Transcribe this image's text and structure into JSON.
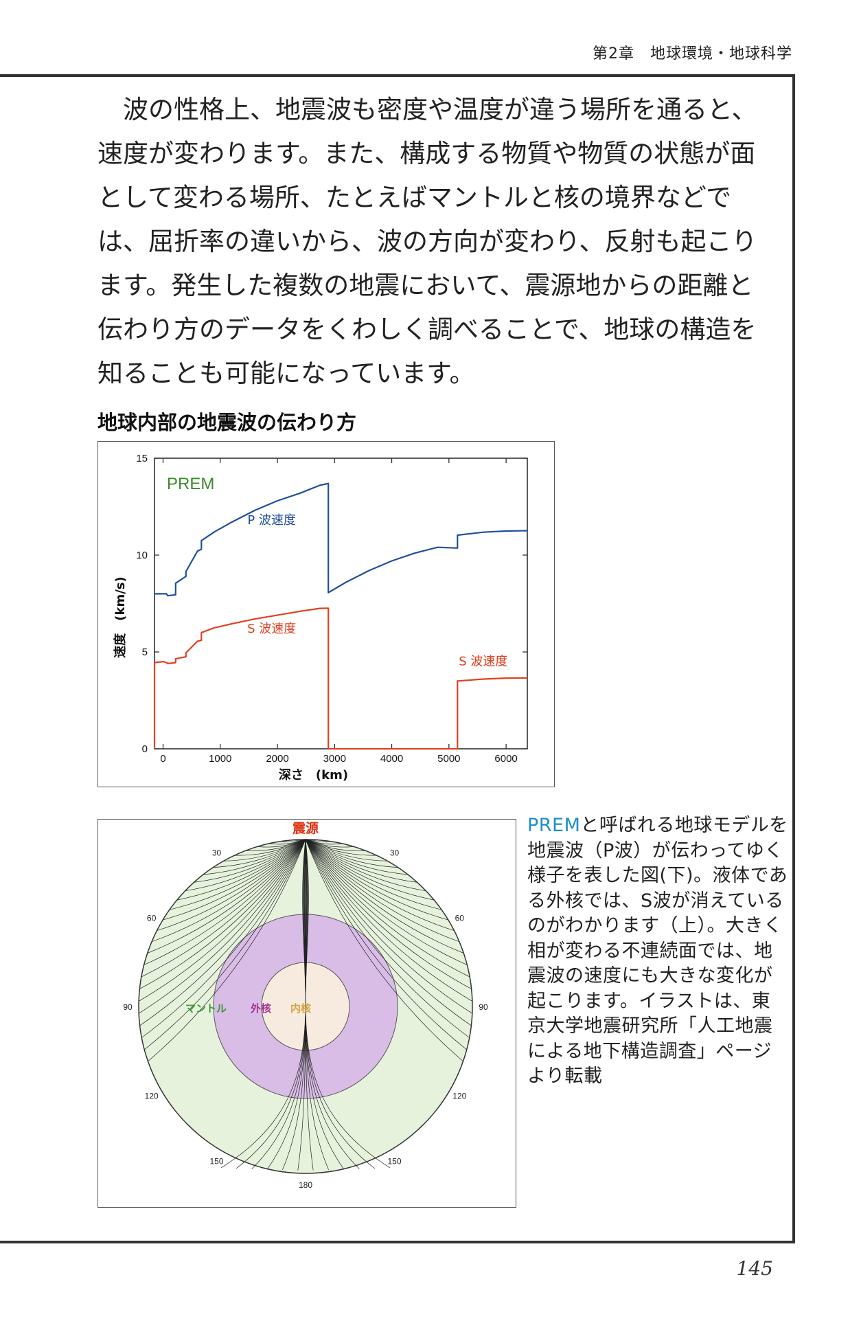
{
  "header": {
    "running_title": "第2章　地球環境・地球科学"
  },
  "body_text": "波の性格上、地震波も密度や温度が違う場所を通ると、速度が変わります。また、構成する物質や物質の状態が面として変わる場所、たとえばマントルと核の境界などでは、屈折率の違いから、波の方向が変わり、反射も起こります。発生した複数の地震において、震源地からの距離と伝わり方のデータをくわしく調べることで、地球の構造を知ることも可能になっています。",
  "section_title": "地球内部の地震波の伝わり方",
  "chart_data": {
    "type": "line",
    "title": "PREM",
    "xlabel": "深さ　(km)",
    "ylabel": "速度　(km/s)",
    "xlim": [
      -150,
      6371
    ],
    "ylim": [
      0,
      15
    ],
    "xticks": [
      0,
      1000,
      2000,
      3000,
      4000,
      5000,
      6000
    ],
    "yticks": [
      0,
      5,
      10,
      15
    ],
    "series": [
      {
        "name": "P 波速度",
        "color": "#1f4e9e",
        "points": [
          [
            -150,
            8.0
          ],
          [
            0,
            8.0
          ],
          [
            60,
            8.0
          ],
          [
            80,
            7.9
          ],
          [
            220,
            7.95
          ],
          [
            220,
            8.55
          ],
          [
            400,
            8.9
          ],
          [
            400,
            9.15
          ],
          [
            600,
            10.2
          ],
          [
            670,
            10.3
          ],
          [
            670,
            10.75
          ],
          [
            900,
            11.2
          ],
          [
            1200,
            11.7
          ],
          [
            1600,
            12.3
          ],
          [
            2000,
            12.8
          ],
          [
            2400,
            13.2
          ],
          [
            2740,
            13.6
          ],
          [
            2891,
            13.7
          ],
          [
            2891,
            8.06
          ],
          [
            3200,
            8.6
          ],
          [
            3600,
            9.2
          ],
          [
            4000,
            9.7
          ],
          [
            4400,
            10.1
          ],
          [
            4800,
            10.4
          ],
          [
            5150,
            10.36
          ],
          [
            5150,
            11.03
          ],
          [
            5600,
            11.18
          ],
          [
            6000,
            11.24
          ],
          [
            6371,
            11.26
          ]
        ]
      },
      {
        "name": "S 波速度",
        "color": "#e04020",
        "points": [
          [
            -150,
            0
          ],
          [
            -150,
            4.45
          ],
          [
            0,
            4.5
          ],
          [
            60,
            4.45
          ],
          [
            80,
            4.4
          ],
          [
            220,
            4.45
          ],
          [
            220,
            4.65
          ],
          [
            400,
            4.75
          ],
          [
            400,
            4.95
          ],
          [
            600,
            5.55
          ],
          [
            670,
            5.6
          ],
          [
            670,
            6.0
          ],
          [
            900,
            6.25
          ],
          [
            1200,
            6.45
          ],
          [
            1600,
            6.7
          ],
          [
            2000,
            6.9
          ],
          [
            2400,
            7.1
          ],
          [
            2740,
            7.25
          ],
          [
            2891,
            7.26
          ],
          [
            2891,
            0
          ],
          [
            5150,
            0
          ],
          [
            5150,
            3.5
          ],
          [
            5600,
            3.6
          ],
          [
            6000,
            3.65
          ],
          [
            6371,
            3.66
          ]
        ]
      }
    ],
    "annotations": [
      {
        "text": "P 波速度",
        "x": 1900,
        "y": 11.6,
        "color": "#1f4e9e"
      },
      {
        "text": "S 波速度",
        "x": 1900,
        "y": 6.0,
        "color": "#e04020"
      },
      {
        "text": "S 波速度",
        "x": 5600,
        "y": 4.3,
        "color": "#e04020"
      }
    ],
    "grid": false
  },
  "diagram": {
    "source_label": "震源",
    "angle_labels": [
      "30",
      "30",
      "60",
      "60",
      "90",
      "90",
      "120",
      "120",
      "150",
      "150",
      "180"
    ],
    "layers": [
      {
        "name": "マントル",
        "color": "#e6f2dc",
        "label_color": "#3a9a3a"
      },
      {
        "name": "外核",
        "color": "#d9bde6",
        "label_color": "#a03090"
      },
      {
        "name": "内核",
        "color": "#f6ebde",
        "label_color": "#d8a040"
      }
    ]
  },
  "caption": {
    "keyword": "PREM",
    "text": "と呼ばれる地球モデルを地震波（P波）が伝わってゆく様子を表した図(下)。液体である外核では、S波が消えているのがわかります（上）。大きく相が変わる不連続面では、地震波の速度にも大きな変化が起こります。イラストは、東京大学地震研究所「人工地震による地下構造調査」ページより転載"
  },
  "page_number": "145"
}
